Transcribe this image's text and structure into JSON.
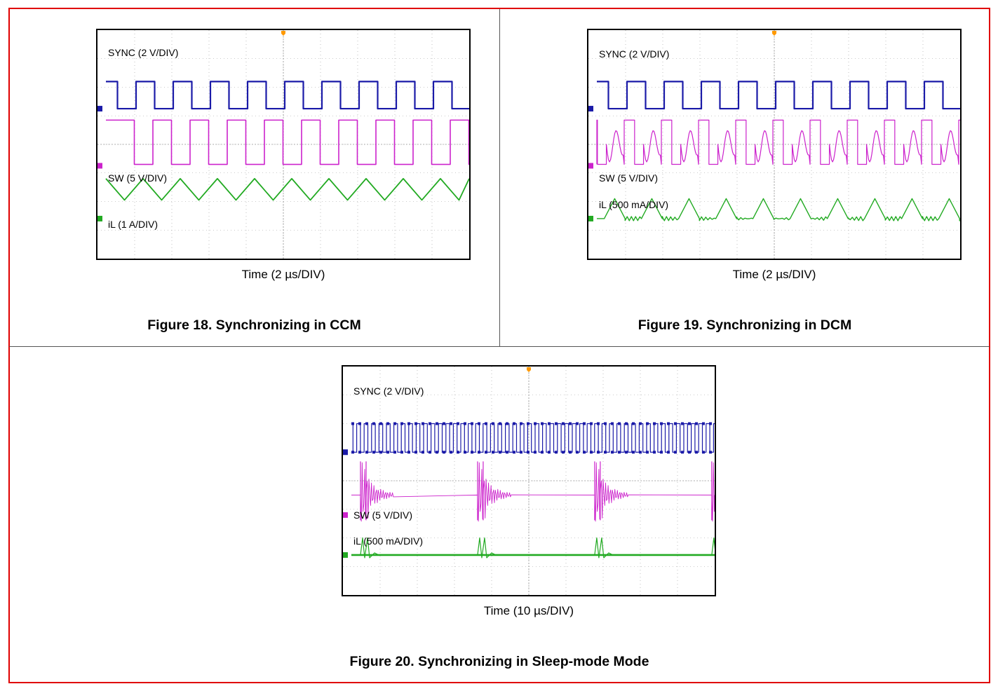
{
  "colors": {
    "frame": "#e00000",
    "sync": "#1a1aa8",
    "sw": "#cc22cc",
    "il": "#22aa22",
    "grid": "#9a9a9a",
    "trigger": "#ff9900"
  },
  "figures": [
    {
      "caption": "Figure 18. Synchronizing in CCM",
      "xlabel": "Time (2 µs/DIV)",
      "traces": {
        "sync": "SYNC (2 V/DIV)",
        "sw": "SW (5 V/DIV)",
        "il": "iL (1 A/DIV)"
      }
    },
    {
      "caption": "Figure 19. Synchronizing in DCM",
      "xlabel": "Time (2 µs/DIV)",
      "traces": {
        "sync": "SYNC (2 V/DIV)",
        "sw": "SW (5 V/DIV)",
        "il": "iL (500 mA/DIV)"
      }
    },
    {
      "caption": "Figure 20. Synchronizing in Sleep-mode Mode",
      "xlabel": "Time (10 µs/DIV)",
      "traces": {
        "sync": "SYNC (2 V/DIV)",
        "sw": "SW (5 V/DIV)",
        "il": "iL (500 mA/DIV)"
      }
    }
  ],
  "chart_data": [
    {
      "type": "line",
      "mode": "ccm",
      "title": "Figure 18. Synchronizing in CCM",
      "xlabel": "Time (2 µs/DIV)",
      "x_divisions": 10,
      "y_divisions": 8,
      "grid": true,
      "sync_period_div": 1.0,
      "sync_cycles_on_screen": 10,
      "series": [
        {
          "name": "SYNC (2 V/DIV)",
          "shape": "square",
          "high_div": 2.2,
          "low_div": 1.25
        },
        {
          "name": "SW (5 V/DIV)",
          "shape": "square",
          "high_div": 0.85,
          "low_div": -0.7
        },
        {
          "name": "iL (1 A/DIV)",
          "shape": "triangle",
          "peak_div": -1.2,
          "valley_div": -1.95
        }
      ]
    },
    {
      "type": "line",
      "mode": "dcm",
      "title": "Figure 19. Synchronizing in DCM",
      "xlabel": "Time (2 µs/DIV)",
      "x_divisions": 10,
      "y_divisions": 8,
      "grid": true,
      "sync_period_div": 1.0,
      "sync_cycles_on_screen": 10,
      "series": [
        {
          "name": "SYNC (2 V/DIV)",
          "shape": "square",
          "high_div": 2.2,
          "low_div": 1.25
        },
        {
          "name": "SW (5 V/DIV)",
          "shape": "square+ringing",
          "high_div": 0.85,
          "low_div": -0.7,
          "ring_center_div": 0.0
        },
        {
          "name": "iL (500 mA/DIV)",
          "shape": "triangle pulses",
          "peak_div": -1.9,
          "base_div": -2.6
        }
      ]
    },
    {
      "type": "line",
      "mode": "sleep",
      "title": "Figure 20. Synchronizing in Sleep-mode Mode",
      "xlabel": "Time (10 µs/DIV)",
      "x_divisions": 10,
      "y_divisions": 8,
      "grid": true,
      "sync_period_div": 0.2,
      "sync_cycles_on_screen": 50,
      "burst_period_div": 3.15,
      "series": [
        {
          "name": "SYNC (2 V/DIV)",
          "shape": "square",
          "high_div": 2.0,
          "low_div": 1.0
        },
        {
          "name": "SW (5 V/DIV)",
          "shape": "bursts",
          "idle_div": -0.5
        },
        {
          "name": "iL (500 mA/DIV)",
          "shape": "double spikes",
          "peak_div": -2.0,
          "base_div": -2.6
        }
      ]
    }
  ]
}
